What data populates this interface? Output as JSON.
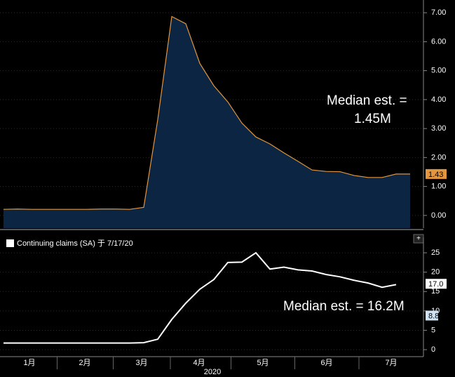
{
  "chart_data": [
    {
      "type": "area",
      "categories": [
        null,
        null,
        null,
        null,
        null,
        null,
        null,
        null,
        null,
        null,
        null,
        null,
        null,
        null,
        null,
        null,
        null,
        null,
        null,
        null,
        null,
        null,
        null,
        null,
        null,
        null,
        null,
        null,
        null,
        null
      ],
      "values": [
        0.21,
        0.22,
        0.21,
        0.21,
        0.21,
        0.21,
        0.21,
        0.22,
        0.22,
        0.21,
        0.28,
        3.31,
        6.87,
        6.62,
        5.25,
        4.48,
        3.92,
        3.19,
        2.71,
        2.47,
        2.16,
        1.87,
        1.57,
        1.52,
        1.51,
        1.38,
        1.31,
        1.31,
        1.43,
        1.43
      ],
      "color": "#e3963e",
      "fill": "#0b2542",
      "ylim": [
        -0.44,
        7.44
      ],
      "yticks": [
        {
          "value": 0,
          "label": "0.00"
        },
        {
          "value": 1,
          "label": "1.00"
        },
        {
          "value": 2,
          "label": "2.00"
        },
        {
          "value": 3,
          "label": "3.00"
        },
        {
          "value": 4,
          "label": "4.00"
        },
        {
          "value": 5,
          "label": "5.00"
        },
        {
          "value": 6,
          "label": "6.00"
        },
        {
          "value": 7,
          "label": "7.00"
        }
      ],
      "last_value_label": {
        "value": 1.43,
        "label": "1.43"
      },
      "annotations": [
        "Median est. =",
        "1.45M"
      ],
      "grid": true
    },
    {
      "type": "line",
      "categories": [
        null,
        null,
        null,
        null,
        null,
        null,
        null,
        null,
        null,
        null,
        null,
        null,
        null,
        null,
        null,
        null,
        null,
        null,
        null,
        null,
        null,
        null,
        null,
        null,
        null,
        null,
        null,
        null,
        null,
        null
      ],
      "series": [
        {
          "name": "Continuing claims (SA) 于 7/17/20",
          "color": "#ffffff",
          "values": [
            1.7,
            1.7,
            1.7,
            1.7,
            1.7,
            1.7,
            1.7,
            1.7,
            1.7,
            1.7,
            1.8,
            2.7,
            7.8,
            12.0,
            15.6,
            18.1,
            22.5,
            22.6,
            25.0,
            20.8,
            21.3,
            20.6,
            20.3,
            19.4,
            18.8,
            17.9,
            17.2,
            16.1,
            16.8,
            null
          ]
        }
      ],
      "ylim": [
        -1.8,
        29
      ],
      "yticks": [
        0,
        5,
        10,
        15,
        20,
        25
      ],
      "last_value_label": {
        "value": 17,
        "label": "17.0"
      },
      "other_value_label": {
        "value": 8.8,
        "label": "8.8"
      },
      "annotations": [
        "Median est. = 16.2M"
      ],
      "xticks": [
        {
          "value": 1.85,
          "label": "1月"
        },
        {
          "value": 5.8,
          "label": "2月"
        },
        {
          "value": 9.85,
          "label": "3月"
        },
        {
          "value": 13.95,
          "label": "4月"
        },
        {
          "value": 18.5,
          "label": "5月"
        },
        {
          "value": 23.05,
          "label": "6月"
        },
        {
          "value": 27.65,
          "label": "7月"
        }
      ],
      "xlabel": "2020",
      "grid": true
    }
  ]
}
